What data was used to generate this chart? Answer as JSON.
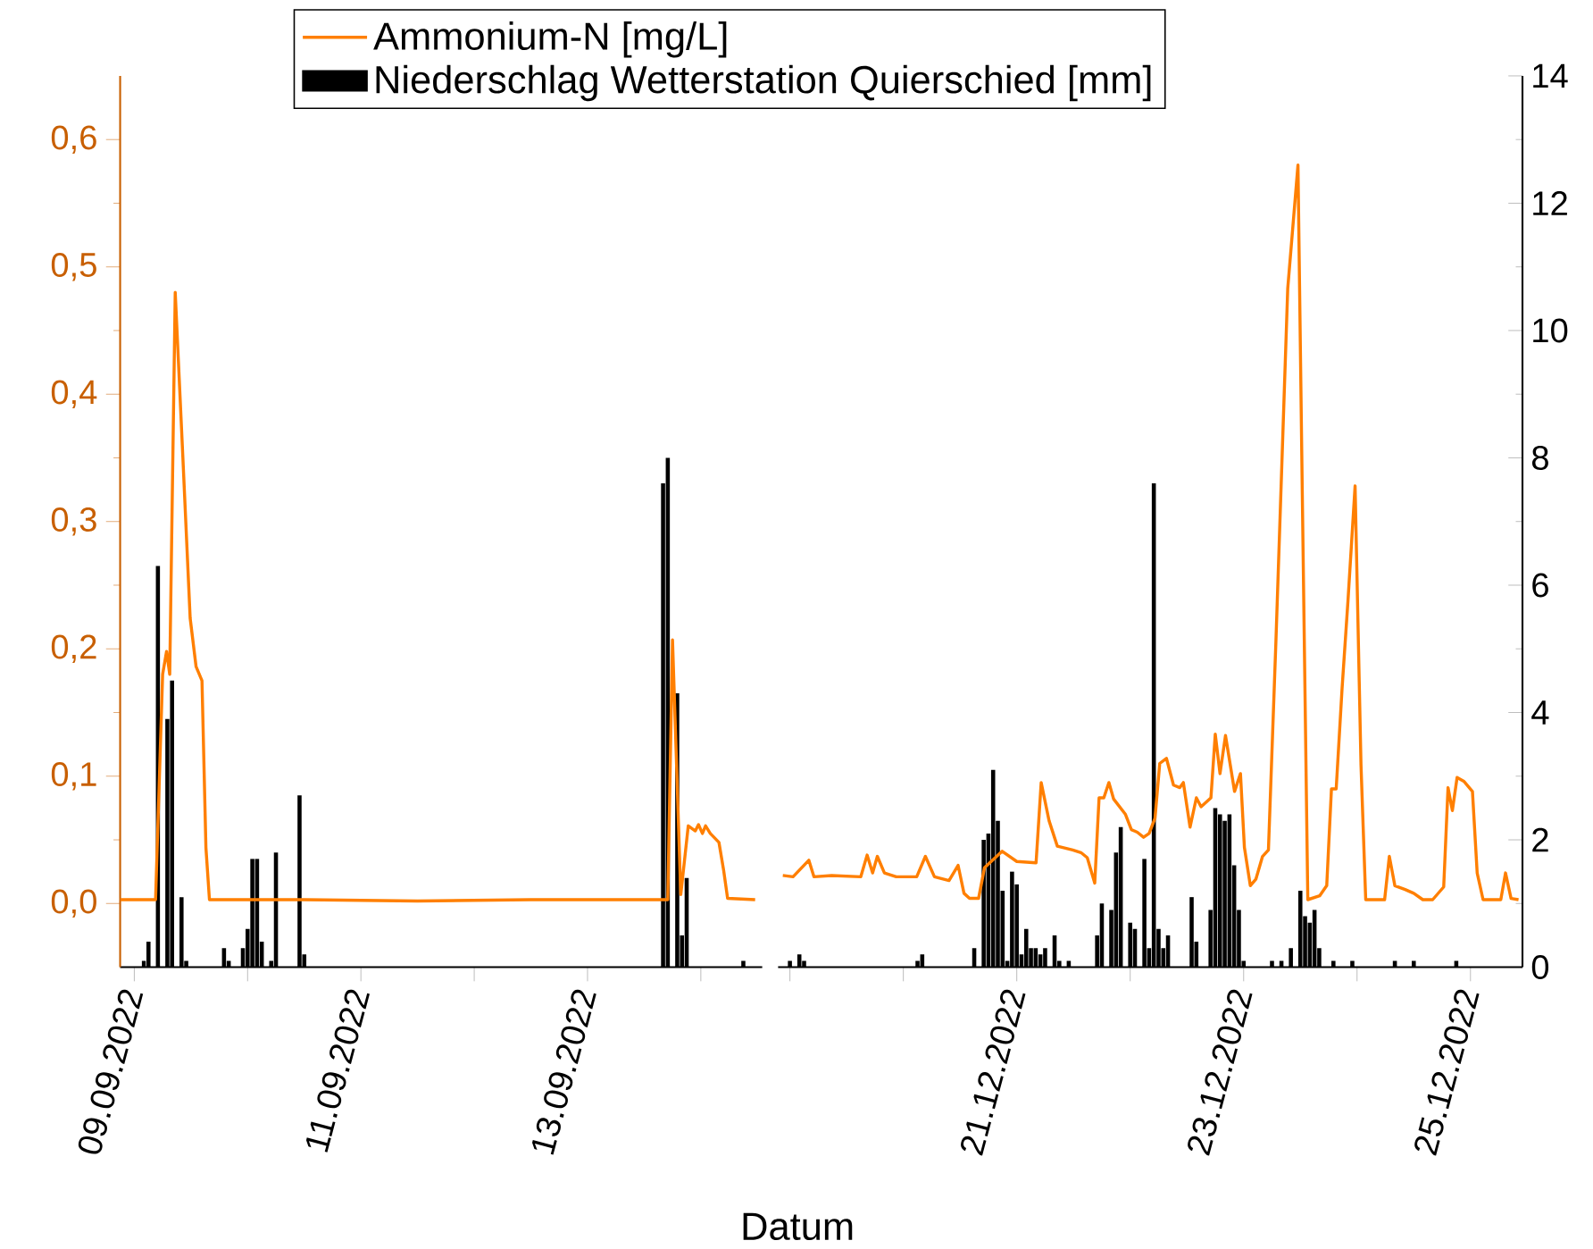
{
  "chart_data": [
    {
      "type": "line",
      "xlabel": "Datum",
      "legend": "top",
      "tick_labels": [
        "x",
        "y"
      ],
      "xlim": [
        "2022-09-08T21:00",
        "2022-09-14T13:00"
      ],
      "xticks": [
        {
          "value": "2022-09-09",
          "label": "09.09.2022"
        },
        {
          "value": "2022-09-10",
          "label": null
        },
        {
          "value": "2022-09-11",
          "label": "11.09.2022"
        },
        {
          "value": "2022-09-12",
          "label": null
        },
        {
          "value": "2022-09-13",
          "label": "13.09.2022"
        },
        {
          "value": "2022-09-14",
          "label": null
        }
      ],
      "ylim": [
        -0.05,
        0.65
      ],
      "yticks": [
        {
          "value": 0,
          "label": "0,0"
        },
        {
          "value": 0.1,
          "label": "0,1"
        },
        {
          "value": 0.2,
          "label": "0,2"
        },
        {
          "value": 0.3,
          "label": "0,3"
        },
        {
          "value": 0.4,
          "label": "0,4"
        },
        {
          "value": 0.5,
          "label": "0,5"
        },
        {
          "value": 0.6,
          "label": "0,6"
        }
      ],
      "y2lim": [
        0,
        14
      ],
      "series": [
        {
          "name": "Ammonium-N [mg/L]",
          "color": "#ff7f00",
          "x": [
            "2022-09-08T21:00",
            "2022-09-09T04:30",
            "2022-09-09T06:00",
            "2022-09-09T06:50",
            "2022-09-09T07:30",
            "2022-09-09T08:40",
            "2022-09-09T10:10",
            "2022-09-09T11:50",
            "2022-09-09T13:05",
            "2022-09-09T14:20",
            "2022-09-09T15:10",
            "2022-09-09T15:55",
            "2022-09-10T12:00",
            "2022-09-11T12:00",
            "2022-09-12T12:00",
            "2022-09-13T12:00",
            "2022-09-13T17:00",
            "2022-09-13T18:00",
            "2022-09-13T19:45",
            "2022-09-13T21:20",
            "2022-09-13T22:50",
            "2022-09-13T23:30",
            "2022-09-14T00:20",
            "2022-09-14T01:00",
            "2022-09-14T02:00",
            "2022-09-14T03:50",
            "2022-09-14T04:50",
            "2022-09-14T05:40",
            "2022-09-14T11:30"
          ],
          "values": [
            0.003,
            0.003,
            0.18,
            0.198,
            0.18,
            0.48,
            0.36,
            0.224,
            0.186,
            0.175,
            0.044,
            0.003,
            0.003,
            0.002,
            0.003,
            0.003,
            0.003,
            0.207,
            0.007,
            0.061,
            0.057,
            0.062,
            0.055,
            0.061,
            0.055,
            0.048,
            0.026,
            0.004,
            0.003
          ]
        },
        {
          "name": "Niederschlag Wetterstation Quierschied [mm]",
          "type": "bar",
          "axis": "y2",
          "color": "#000000",
          "x": [
            "2022-09-09T02:00",
            "2022-09-09T03:00",
            "2022-09-09T05:00",
            "2022-09-09T07:00",
            "2022-09-09T08:00",
            "2022-09-09T10:00",
            "2022-09-09T11:00",
            "2022-09-09T19:00",
            "2022-09-09T20:00",
            "2022-09-09T23:00",
            "2022-09-10T00:00",
            "2022-09-10T01:00",
            "2022-09-10T02:00",
            "2022-09-10T03:00",
            "2022-09-10T05:00",
            "2022-09-10T06:00",
            "2022-09-10T11:00",
            "2022-09-10T12:00",
            "2022-09-13T16:00",
            "2022-09-13T17:00",
            "2022-09-13T19:00",
            "2022-09-13T20:00",
            "2022-09-13T21:00",
            "2022-09-14T09:00"
          ],
          "values": [
            0.1,
            0.4,
            6.3,
            3.9,
            4.5,
            1.1,
            0.1,
            0.3,
            0.1,
            0.3,
            0.6,
            1.7,
            1.7,
            0.4,
            0.1,
            1.8,
            2.7,
            0.2,
            7.6,
            8.0,
            4.3,
            0.5,
            1.4,
            0.1
          ]
        }
      ]
    },
    {
      "type": "line",
      "tick_labels": [
        "x",
        "y2"
      ],
      "xlim": [
        "2022-12-18T21:30",
        "2022-12-25T11:00"
      ],
      "xticks": [
        {
          "value": "2022-12-19",
          "label": null
        },
        {
          "value": "2022-12-20",
          "label": null
        },
        {
          "value": "2022-12-21",
          "label": "21.12.2022"
        },
        {
          "value": "2022-12-22",
          "label": null
        },
        {
          "value": "2022-12-23",
          "label": "23.12.2022"
        },
        {
          "value": "2022-12-24",
          "label": null
        },
        {
          "value": "2022-12-25",
          "label": "25.12.2022"
        }
      ],
      "ylim": [
        -0.05,
        0.65
      ],
      "y2lim": [
        0,
        14
      ],
      "y2ticks": [
        0,
        2,
        4,
        6,
        8,
        10,
        12,
        14
      ],
      "series": [
        {
          "color": "#ff7f00",
          "x": [
            "2022-12-18T22:30",
            "2022-12-19T00:40",
            "2022-12-19T04:00",
            "2022-12-19T05:05",
            "2022-12-19T08:50",
            "2022-12-19T15:00",
            "2022-12-19T16:20",
            "2022-12-19T17:30",
            "2022-12-19T18:30",
            "2022-12-19T20:00",
            "2022-12-19T22:30",
            "2022-12-20T02:50",
            "2022-12-20T04:40",
            "2022-12-20T06:35",
            "2022-12-20T09:40",
            "2022-12-20T11:35",
            "2022-12-20T12:50",
            "2022-12-20T14:00",
            "2022-12-20T15:55",
            "2022-12-20T17:10",
            "2022-12-20T20:55",
            "2022-12-21T00:00",
            "2022-12-21T04:05",
            "2022-12-21T05:10",
            "2022-12-21T06:50",
            "2022-12-21T08:35",
            "2022-12-21T11:50",
            "2022-12-21T13:35",
            "2022-12-21T14:55",
            "2022-12-21T16:30",
            "2022-12-21T17:25",
            "2022-12-21T18:25",
            "2022-12-21T19:30",
            "2022-12-21T20:30",
            "2022-12-21T23:00",
            "2022-12-22T00:15",
            "2022-12-22T01:30",
            "2022-12-22T02:50",
            "2022-12-22T04:00",
            "2022-12-22T05:15",
            "2022-12-22T06:15",
            "2022-12-22T07:40",
            "2022-12-22T09:10",
            "2022-12-22T10:30",
            "2022-12-22T11:15",
            "2022-12-22T12:40",
            "2022-12-22T14:00",
            "2022-12-22T15:00",
            "2022-12-22T17:05",
            "2022-12-22T18:00",
            "2022-12-22T19:00",
            "2022-12-22T20:10",
            "2022-12-22T22:05",
            "2022-12-22T23:20",
            "2022-12-23T00:10",
            "2022-12-23T01:25",
            "2022-12-23T02:35",
            "2022-12-23T04:00",
            "2022-12-23T05:15",
            "2022-12-23T06:50",
            "2022-12-23T09:20",
            "2022-12-23T11:30",
            "2022-12-23T12:25",
            "2022-12-23T13:35",
            "2022-12-23T16:05",
            "2022-12-23T17:35",
            "2022-12-23T18:35",
            "2022-12-23T19:35",
            "2022-12-23T20:50",
            "2022-12-23T22:05",
            "2022-12-23T23:35",
            "2022-12-24T00:50",
            "2022-12-24T01:50",
            "2022-12-24T05:50",
            "2022-12-24T06:50",
            "2022-12-24T08:00",
            "2022-12-24T10:10",
            "2022-12-24T12:00",
            "2022-12-24T13:55",
            "2022-12-24T16:00",
            "2022-12-24T18:20",
            "2022-12-24T19:15",
            "2022-12-24T20:10",
            "2022-12-24T21:10",
            "2022-12-24T22:35",
            "2022-12-25T00:25",
            "2022-12-25T01:25",
            "2022-12-25T02:40",
            "2022-12-25T06:25",
            "2022-12-25T07:25",
            "2022-12-25T08:35",
            "2022-12-25T10:10"
          ],
          "values": [
            0.022,
            0.021,
            0.034,
            0.021,
            0.022,
            0.021,
            0.038,
            0.024,
            0.037,
            0.024,
            0.021,
            0.021,
            0.037,
            0.021,
            0.018,
            0.03,
            0.008,
            0.004,
            0.004,
            0.028,
            0.041,
            0.033,
            0.032,
            0.095,
            0.065,
            0.045,
            0.042,
            0.04,
            0.036,
            0.016,
            0.083,
            0.083,
            0.095,
            0.082,
            0.07,
            0.058,
            0.056,
            0.052,
            0.055,
            0.067,
            0.11,
            0.114,
            0.093,
            0.091,
            0.095,
            0.06,
            0.083,
            0.076,
            0.083,
            0.133,
            0.102,
            0.132,
            0.088,
            0.102,
            0.044,
            0.014,
            0.019,
            0.037,
            0.042,
            0.206,
            0.483,
            0.58,
            0.321,
            0.003,
            0.006,
            0.014,
            0.09,
            0.09,
            0.169,
            0.238,
            0.328,
            0.109,
            0.003,
            0.003,
            0.037,
            0.014,
            0.011,
            0.008,
            0.003,
            0.003,
            0.013,
            0.091,
            0.073,
            0.099,
            0.096,
            0.088,
            0.024,
            0.003,
            0.003,
            0.024,
            0.004,
            0.003
          ]
        },
        {
          "type": "bar",
          "axis": "y2",
          "color": "#000000",
          "x": [
            "2022-12-19T00:00",
            "2022-12-19T02:00",
            "2022-12-19T03:00",
            "2022-12-20T03:00",
            "2022-12-20T04:00",
            "2022-12-20T15:00",
            "2022-12-20T17:00",
            "2022-12-20T18:00",
            "2022-12-20T19:00",
            "2022-12-20T20:00",
            "2022-12-20T21:00",
            "2022-12-20T22:00",
            "2022-12-20T23:00",
            "2022-12-21T00:00",
            "2022-12-21T01:00",
            "2022-12-21T02:00",
            "2022-12-21T03:00",
            "2022-12-21T04:00",
            "2022-12-21T05:00",
            "2022-12-21T06:00",
            "2022-12-21T08:00",
            "2022-12-21T09:00",
            "2022-12-21T11:00",
            "2022-12-21T17:00",
            "2022-12-21T18:00",
            "2022-12-21T20:00",
            "2022-12-21T21:00",
            "2022-12-21T22:00",
            "2022-12-22T00:00",
            "2022-12-22T01:00",
            "2022-12-22T03:00",
            "2022-12-22T04:00",
            "2022-12-22T05:00",
            "2022-12-22T06:00",
            "2022-12-22T07:00",
            "2022-12-22T08:00",
            "2022-12-22T13:00",
            "2022-12-22T14:00",
            "2022-12-22T17:00",
            "2022-12-22T18:00",
            "2022-12-22T19:00",
            "2022-12-22T20:00",
            "2022-12-22T21:00",
            "2022-12-22T22:00",
            "2022-12-22T23:00",
            "2022-12-23T00:00",
            "2022-12-23T06:00",
            "2022-12-23T08:00",
            "2022-12-23T10:00",
            "2022-12-23T12:00",
            "2022-12-23T13:00",
            "2022-12-23T14:00",
            "2022-12-23T15:00",
            "2022-12-23T16:00",
            "2022-12-23T19:00",
            "2022-12-23T23:00",
            "2022-12-24T08:00",
            "2022-12-24T12:00",
            "2022-12-24T21:00"
          ],
          "values": [
            0.1,
            0.2,
            0.1,
            0.1,
            0.2,
            0.3,
            2.0,
            2.1,
            3.1,
            2.3,
            1.2,
            0.1,
            1.5,
            1.3,
            0.2,
            0.6,
            0.3,
            0.3,
            0.2,
            0.3,
            0.5,
            0.1,
            0.1,
            0.5,
            1.0,
            0.9,
            1.8,
            2.2,
            0.7,
            0.6,
            1.7,
            0.3,
            7.6,
            0.6,
            0.3,
            0.5,
            1.1,
            0.4,
            0.9,
            2.5,
            2.4,
            2.3,
            2.4,
            1.6,
            0.9,
            0.1,
            0.1,
            0.1,
            0.3,
            1.2,
            0.8,
            0.7,
            0.9,
            0.3,
            0.1,
            0.1,
            0.1,
            0.1,
            0.1
          ]
        }
      ]
    }
  ]
}
